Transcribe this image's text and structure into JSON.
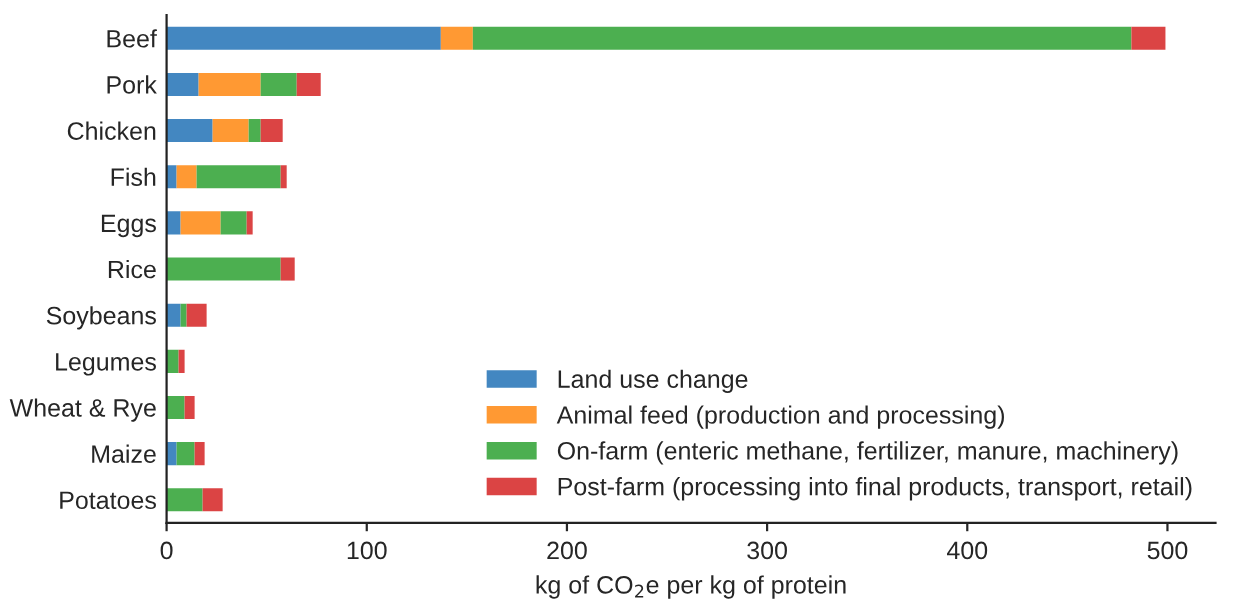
{
  "chart_data": {
    "type": "bar",
    "orientation": "horizontal",
    "stacked": true,
    "xlabel": "kg of CO$_{2}$e per kg of protein",
    "categories": [
      "Beef",
      "Pork",
      "Chicken",
      "Fish",
      "Eggs",
      "Rice",
      "Soybeans",
      "Legumes",
      "Wheat & Rye",
      "Maize",
      "Potatoes"
    ],
    "series": [
      {
        "name": "Land use change",
        "color": "#4387c1",
        "values": [
          137,
          16,
          23,
          5,
          7,
          0,
          7,
          0,
          0,
          5,
          0
        ]
      },
      {
        "name": "Animal feed (production and processing)",
        "color": "#ff9933",
        "values": [
          16,
          31,
          18,
          10,
          20,
          0,
          0,
          0,
          0,
          0,
          0
        ]
      },
      {
        "name": "On-farm (enteric methane, fertilizer, manure, machinery)",
        "color": "#4caf50",
        "values": [
          329,
          18,
          6,
          42,
          13,
          57,
          3,
          6,
          9,
          9,
          18
        ]
      },
      {
        "name": "Post-farm (processing into final products, transport, retail)",
        "color": "#db4444",
        "values": [
          17,
          12,
          11,
          3,
          3,
          7,
          10,
          3,
          5,
          5,
          10
        ]
      }
    ],
    "xlim": [
      0,
      524
    ],
    "xticks": [
      0,
      100,
      200,
      300,
      400,
      500
    ],
    "grid": false,
    "legend": "bottom right"
  }
}
